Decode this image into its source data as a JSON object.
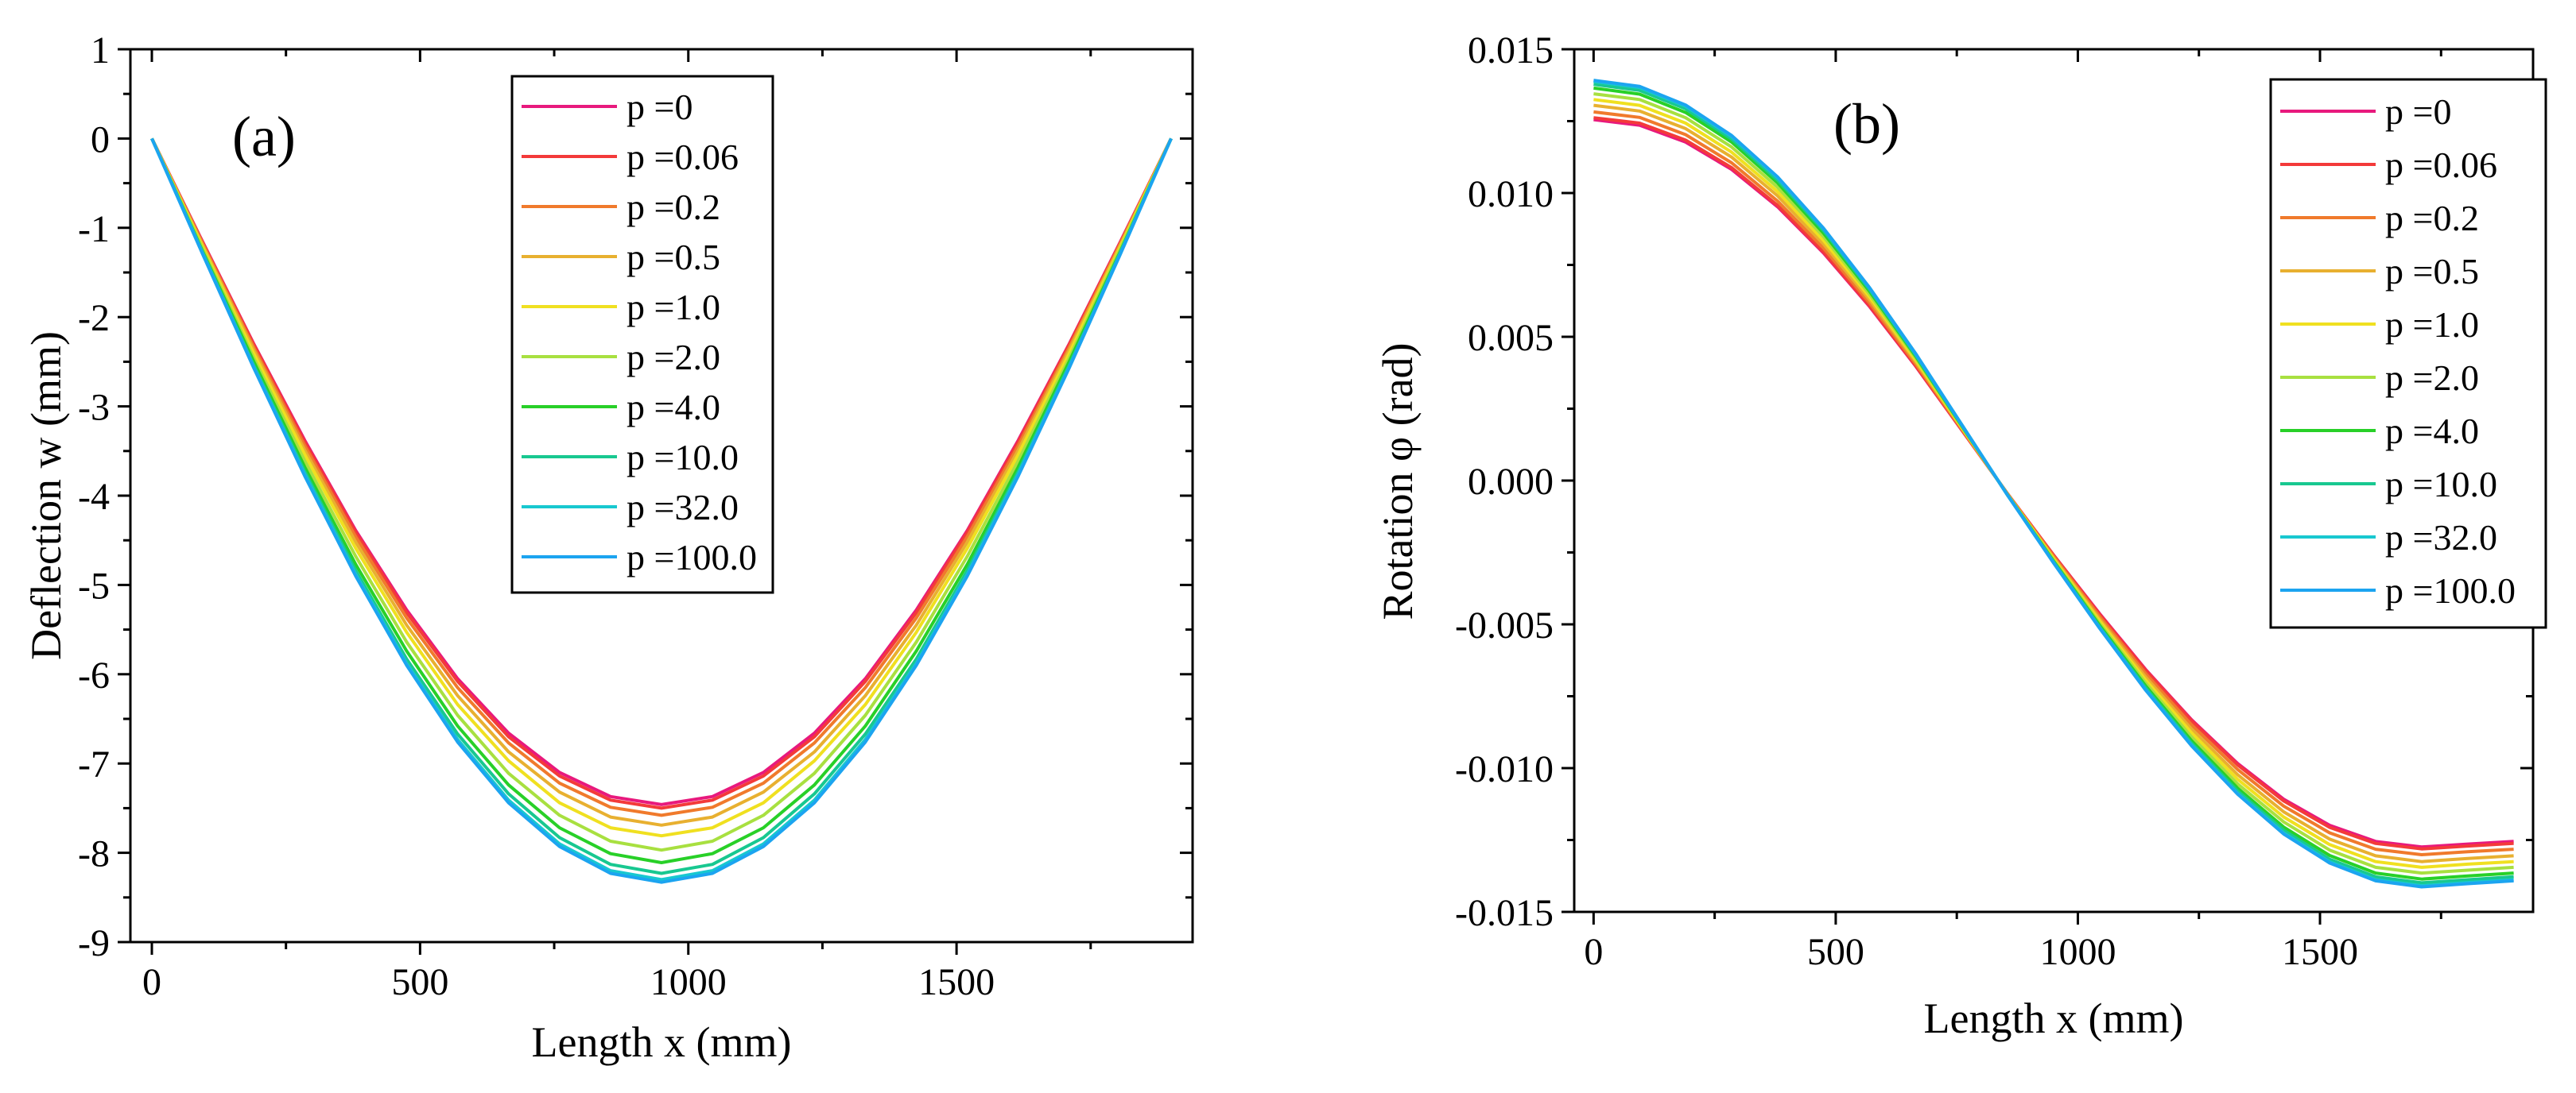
{
  "colors": {
    "series": [
      "#e8197d",
      "#f33a3a",
      "#f07a2c",
      "#e8b030",
      "#f0e020",
      "#a8e040",
      "#28d028",
      "#18c890",
      "#18c8d0",
      "#1ca4f0"
    ]
  },
  "legend_labels": [
    "p =0",
    "p =0.06",
    "p =0.2",
    "p =0.5",
    "p =1.0",
    "p =2.0",
    "p =4.0",
    "p =10.0",
    "p =32.0",
    "p =100.0"
  ],
  "chart_data": [
    {
      "type": "line",
      "panel_label": "(a)",
      "xlabel": "Length x (mm)",
      "ylabel": "Deflection w (mm)",
      "xlim": [
        -40,
        1940
      ],
      "ylim": [
        -9,
        1
      ],
      "xticks": [
        0,
        500,
        1000,
        1500
      ],
      "xtick_labels": [
        "0",
        "500",
        "1000",
        "1500"
      ],
      "yticks": [
        1,
        0,
        -1,
        -2,
        -3,
        -4,
        -5,
        -6,
        -7,
        -8,
        -9
      ],
      "ytick_labels": [
        "1",
        "0",
        "-1",
        "-2",
        "-3",
        "-4",
        "-5",
        "-6",
        "-7",
        "-8",
        "-9"
      ],
      "x": [
        0,
        95,
        190,
        285,
        380,
        475,
        570,
        665,
        760,
        855,
        950,
        1045,
        1140,
        1235,
        1330,
        1425,
        1520,
        1615,
        1710,
        1805,
        1900
      ],
      "series": [
        {
          "name": "p =0",
          "values": [
            0.0,
            -1.16,
            -2.3,
            -3.38,
            -4.39,
            -5.28,
            -6.05,
            -6.66,
            -7.1,
            -7.37,
            -7.46,
            -7.37,
            -7.1,
            -6.66,
            -6.05,
            -5.28,
            -4.39,
            -3.38,
            -2.3,
            -1.16,
            0.0
          ]
        },
        {
          "name": "p =0.06",
          "values": [
            0.0,
            -1.17,
            -2.31,
            -3.4,
            -4.41,
            -5.31,
            -6.08,
            -6.7,
            -7.14,
            -7.41,
            -7.5,
            -7.41,
            -7.14,
            -6.7,
            -6.08,
            -5.31,
            -4.41,
            -3.4,
            -2.31,
            -1.17,
            0.0
          ]
        },
        {
          "name": "p =0.2",
          "values": [
            0.0,
            -1.18,
            -2.34,
            -3.44,
            -4.46,
            -5.37,
            -6.15,
            -6.77,
            -7.22,
            -7.49,
            -7.58,
            -7.49,
            -7.22,
            -6.77,
            -6.15,
            -5.37,
            -4.46,
            -3.44,
            -2.34,
            -1.18,
            0.0
          ]
        },
        {
          "name": "p =0.5",
          "values": [
            0.0,
            -1.2,
            -2.37,
            -3.49,
            -4.52,
            -5.45,
            -6.24,
            -6.87,
            -7.32,
            -7.6,
            -7.69,
            -7.6,
            -7.32,
            -6.87,
            -6.24,
            -5.45,
            -4.52,
            -3.49,
            -2.37,
            -1.2,
            0.0
          ]
        },
        {
          "name": "p =1.0",
          "values": [
            0.0,
            -1.22,
            -2.41,
            -3.54,
            -4.59,
            -5.53,
            -6.34,
            -6.97,
            -7.44,
            -7.72,
            -7.81,
            -7.72,
            -7.44,
            -6.97,
            -6.34,
            -5.53,
            -4.59,
            -3.54,
            -2.41,
            -1.22,
            0.0
          ]
        },
        {
          "name": "p =2.0",
          "values": [
            0.0,
            -1.24,
            -2.46,
            -3.61,
            -4.68,
            -5.64,
            -6.46,
            -7.11,
            -7.58,
            -7.87,
            -7.97,
            -7.87,
            -7.58,
            -7.11,
            -6.46,
            -5.64,
            -4.68,
            -3.61,
            -2.46,
            -1.24,
            0.0
          ]
        },
        {
          "name": "p =4.0",
          "values": [
            0.0,
            -1.27,
            -2.5,
            -3.68,
            -4.77,
            -5.74,
            -6.58,
            -7.24,
            -7.72,
            -8.01,
            -8.11,
            -8.01,
            -7.72,
            -7.24,
            -6.58,
            -5.74,
            -4.77,
            -3.68,
            -2.5,
            -1.27,
            0.0
          ]
        },
        {
          "name": "p =10.0",
          "values": [
            0.0,
            -1.28,
            -2.54,
            -3.73,
            -4.84,
            -5.83,
            -6.67,
            -7.34,
            -7.83,
            -8.13,
            -8.23,
            -8.13,
            -7.83,
            -7.34,
            -6.67,
            -5.83,
            -4.84,
            -3.73,
            -2.54,
            -1.28,
            0.0
          ]
        },
        {
          "name": "p =32.0",
          "values": [
            0.0,
            -1.29,
            -2.56,
            -3.76,
            -4.88,
            -5.88,
            -6.73,
            -7.41,
            -7.9,
            -8.2,
            -8.3,
            -8.2,
            -7.9,
            -7.41,
            -6.73,
            -5.88,
            -4.88,
            -3.76,
            -2.56,
            -1.29,
            0.0
          ]
        },
        {
          "name": "p =100.0",
          "values": [
            0.0,
            -1.3,
            -2.57,
            -3.78,
            -4.9,
            -5.9,
            -6.76,
            -7.44,
            -7.93,
            -8.23,
            -8.33,
            -8.23,
            -7.93,
            -7.44,
            -6.76,
            -5.9,
            -4.9,
            -3.78,
            -2.57,
            -1.3,
            0.0
          ]
        }
      ]
    },
    {
      "type": "line",
      "panel_label": "(b)",
      "xlabel": "Length x (mm)",
      "ylabel": "Rotation φ (rad)",
      "xlim": [
        -40,
        1940
      ],
      "ylim": [
        -0.015,
        0.015
      ],
      "xticks": [
        0,
        500,
        1000,
        1500
      ],
      "xtick_labels": [
        "0",
        "500",
        "1000",
        "1500"
      ],
      "yticks": [
        0.015,
        0.01,
        0.005,
        0.0,
        -0.005,
        -0.01,
        -0.015
      ],
      "ytick_labels": [
        "0.015",
        "0.010",
        "0.005",
        "0.000",
        "-0.005",
        "-0.010",
        "-0.015"
      ],
      "x": [
        0,
        95,
        190,
        285,
        380,
        475,
        570,
        665,
        760,
        855,
        950,
        1045,
        1140,
        1235,
        1330,
        1425,
        1520,
        1615,
        1710,
        1805,
        1900
      ],
      "series": [
        {
          "name": "p =0",
          "values": [
            0.01255,
            0.01236,
            0.01177,
            0.01082,
            0.00952,
            0.00791,
            0.00605,
            0.00398,
            0.00176,
            -0.00046,
            -0.00259,
            -0.00463,
            -0.00657,
            -0.00832,
            -0.00984,
            -0.01108,
            -0.01199,
            -0.01255,
            -0.01274,
            -0.01264,
            -0.01255
          ]
        },
        {
          "name": "p =0.06",
          "values": [
            0.01262,
            0.01243,
            0.01184,
            0.01088,
            0.00957,
            0.00795,
            0.00608,
            0.004,
            0.00177,
            -0.00046,
            -0.0026,
            -0.00466,
            -0.0066,
            -0.00836,
            -0.00989,
            -0.01114,
            -0.01206,
            -0.01262,
            -0.01281,
            -0.01271,
            -0.01262
          ]
        },
        {
          "name": "p =0.2",
          "values": [
            0.01282,
            0.01263,
            0.01203,
            0.01105,
            0.00972,
            0.00808,
            0.00618,
            0.00406,
            0.0018,
            -0.00047,
            -0.00264,
            -0.00473,
            -0.00671,
            -0.0085,
            -0.01005,
            -0.01132,
            -0.01225,
            -0.01282,
            -0.01301,
            -0.01291,
            -0.01282
          ]
        },
        {
          "name": "p =0.5",
          "values": [
            0.01305,
            0.01285,
            0.01224,
            0.01125,
            0.0099,
            0.00822,
            0.00629,
            0.00414,
            0.00183,
            -0.00048,
            -0.00269,
            -0.00482,
            -0.00683,
            -0.00865,
            -0.01023,
            -0.01152,
            -0.01247,
            -0.01305,
            -0.01325,
            -0.01314,
            -0.01305
          ]
        },
        {
          "name": "p =1.0",
          "values": [
            0.01325,
            0.01305,
            0.01243,
            0.01142,
            0.01005,
            0.00835,
            0.00639,
            0.0042,
            0.00186,
            -0.00049,
            -0.00273,
            -0.00489,
            -0.00694,
            -0.00878,
            -0.01039,
            -0.0117,
            -0.01266,
            -0.01325,
            -0.01345,
            -0.01334,
            -0.01325
          ]
        },
        {
          "name": "p =2.0",
          "values": [
            0.01345,
            0.01325,
            0.01262,
            0.0116,
            0.0102,
            0.00848,
            0.00648,
            0.00427,
            0.00189,
            -0.00049,
            -0.00277,
            -0.00497,
            -0.00704,
            -0.00892,
            -0.01055,
            -0.01187,
            -0.01285,
            -0.01345,
            -0.01365,
            -0.01355,
            -0.01345
          ]
        },
        {
          "name": "p =4.0",
          "values": [
            0.01365,
            0.01344,
            0.0128,
            0.01177,
            0.01035,
            0.0086,
            0.00658,
            0.00433,
            0.00191,
            -0.0005,
            -0.00281,
            -0.00504,
            -0.00714,
            -0.00905,
            -0.0107,
            -0.01205,
            -0.01304,
            -0.01365,
            -0.01386,
            -0.01375,
            -0.01365
          ]
        },
        {
          "name": "p =10.0",
          "values": [
            0.01378,
            0.01357,
            0.01293,
            0.01188,
            0.01045,
            0.00869,
            0.00664,
            0.00437,
            0.00193,
            -0.00051,
            -0.00284,
            -0.00509,
            -0.00721,
            -0.00914,
            -0.0108,
            -0.01216,
            -0.01317,
            -0.01378,
            -0.01399,
            -0.01388,
            -0.01378
          ]
        },
        {
          "name": "p =32.0",
          "values": [
            0.01388,
            0.01367,
            0.01302,
            0.01196,
            0.01053,
            0.00875,
            0.00669,
            0.0044,
            0.00195,
            -0.00051,
            -0.00286,
            -0.00512,
            -0.00727,
            -0.0092,
            -0.01088,
            -0.01225,
            -0.01326,
            -0.01388,
            -0.01409,
            -0.01398,
            -0.01388
          ]
        },
        {
          "name": "p =100.0",
          "values": [
            0.01392,
            0.01371,
            0.01306,
            0.012,
            0.01056,
            0.00877,
            0.00671,
            0.00442,
            0.00195,
            -0.00051,
            -0.00287,
            -0.00514,
            -0.00729,
            -0.00923,
            -0.01091,
            -0.01229,
            -0.0133,
            -0.01392,
            -0.01413,
            -0.01402,
            -0.01392
          ]
        }
      ]
    }
  ]
}
